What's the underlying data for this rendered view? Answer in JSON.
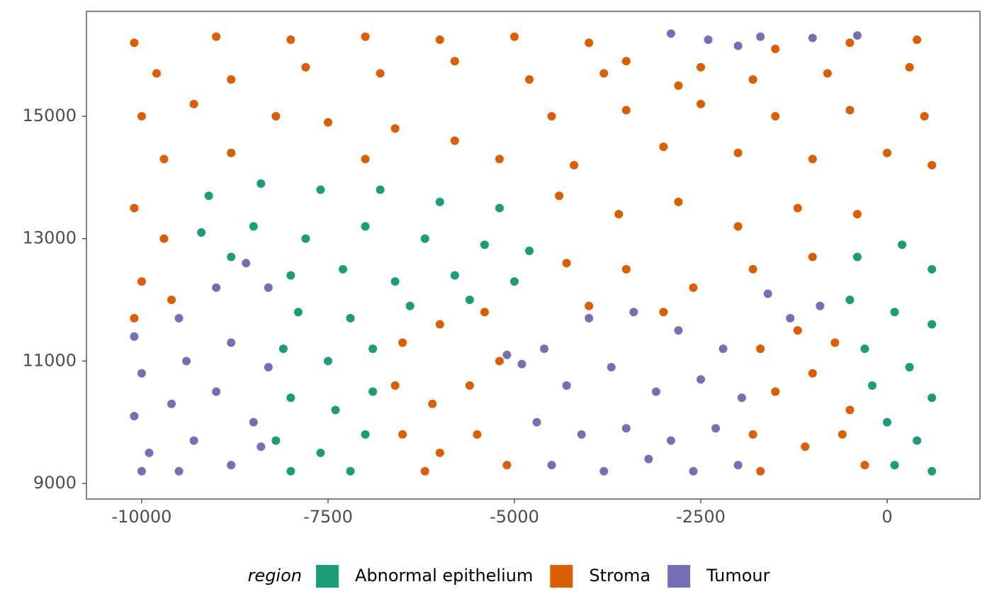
{
  "chart_data": {
    "type": "scatter",
    "xlim": [
      -10741,
      1245
    ],
    "ylim": [
      8745,
      16714
    ],
    "xticks": [
      -10000,
      -7500,
      -5000,
      -2500,
      0
    ],
    "yticks": [
      9000,
      11000,
      13000,
      15000
    ],
    "grid": false,
    "legend_title": "region",
    "legend_position": "bottom",
    "series": [
      {
        "name": "Abnormal epithelium",
        "color": "#1b9e77",
        "x": [
          -9100,
          -8400,
          -7600,
          -6800,
          -6000,
          -5200,
          -9200,
          -8500,
          -7800,
          -7000,
          -6200,
          -5400,
          -4800,
          -8800,
          -8000,
          -7300,
          -6600,
          -5800,
          -5000,
          -7900,
          -7200,
          -6400,
          -5600,
          -8100,
          -7500,
          -6900,
          -8000,
          -7400,
          -6900,
          -8200,
          -7600,
          -7000,
          -8000,
          -7200,
          -400,
          200,
          600,
          -500,
          100,
          600,
          -300,
          300,
          600,
          0,
          400,
          100,
          600,
          -200
        ],
        "values": [
          13700,
          13900,
          13800,
          13800,
          13600,
          13500,
          13100,
          13200,
          13000,
          13200,
          13000,
          12900,
          12800,
          12700,
          12400,
          12500,
          12300,
          12400,
          12300,
          11800,
          11700,
          11900,
          12000,
          11200,
          11000,
          11200,
          10400,
          10200,
          10500,
          9700,
          9500,
          9800,
          9200,
          9200,
          12700,
          12900,
          12500,
          12000,
          11800,
          11600,
          11200,
          10900,
          10400,
          10000,
          9700,
          9300,
          9200,
          10600
        ]
      },
      {
        "name": "Stroma",
        "color": "#d95f02",
        "x": [
          -10100,
          -9000,
          -8000,
          -7000,
          -6000,
          -5000,
          -4000,
          -3500,
          -2500,
          -1500,
          -500,
          400,
          -9800,
          -8800,
          -7800,
          -6800,
          -5800,
          -4800,
          -3800,
          -2800,
          -1800,
          -800,
          300,
          -10000,
          -9300,
          -8200,
          -7500,
          -6600,
          -5800,
          -4500,
          -3500,
          -2500,
          -1500,
          -500,
          500,
          -9700,
          -8800,
          -7000,
          -5200,
          -4200,
          -3000,
          -2000,
          -1000,
          0,
          600,
          -10100,
          -9700,
          -10000,
          -9600,
          -10100,
          -4400,
          -3600,
          -2800,
          -2000,
          -1200,
          -400,
          -4300,
          -3500,
          -2600,
          -1800,
          -1000,
          -4000,
          -3000,
          -6500,
          -6000,
          -5400,
          -6600,
          -6100,
          -5600,
          -5200,
          -6500,
          -6000,
          -5500,
          -5100,
          -6200,
          -1700,
          -1200,
          -700,
          -1500,
          -1000,
          -500,
          -1800,
          -1100,
          -600,
          -300,
          -1700
        ],
        "values": [
          16200,
          16300,
          16250,
          16300,
          16250,
          16300,
          16200,
          15900,
          15800,
          16100,
          16200,
          16250,
          15700,
          15600,
          15800,
          15700,
          15900,
          15600,
          15700,
          15500,
          15600,
          15700,
          15800,
          15000,
          15200,
          15000,
          14900,
          14800,
          14600,
          15000,
          15100,
          15200,
          15000,
          15100,
          15000,
          14300,
          14400,
          14300,
          14300,
          14200,
          14500,
          14400,
          14300,
          14400,
          14200,
          13500,
          13000,
          12300,
          12000,
          11700,
          13700,
          13400,
          13600,
          13200,
          13500,
          13400,
          12600,
          12500,
          12200,
          12500,
          12700,
          11900,
          11800,
          11300,
          11600,
          11800,
          10600,
          10300,
          10600,
          11000,
          9800,
          9500,
          9800,
          9300,
          9200,
          11200,
          11500,
          11300,
          10500,
          10800,
          10200,
          9800,
          9600,
          9800,
          9300,
          9200
        ]
      },
      {
        "name": "Tumour",
        "color": "#7570b3",
        "x": [
          -10100,
          -9500,
          -9000,
          -8600,
          -8300,
          -10000,
          -9400,
          -8800,
          -8300,
          -10100,
          -9600,
          -9000,
          -8500,
          -9900,
          -9300,
          -8800,
          -10000,
          -9500,
          -8400,
          -2900,
          -2400,
          -1700,
          -1000,
          -400,
          -2000,
          -5100,
          -4900,
          -4600,
          -4000,
          -3400,
          -2800,
          -2200,
          -4300,
          -3700,
          -3100,
          -2500,
          -1950,
          -4700,
          -4100,
          -3500,
          -2900,
          -2300,
          -4500,
          -3800,
          -3200,
          -2600,
          -2000,
          -1600,
          -1300,
          -900
        ],
        "values": [
          11400,
          11700,
          12200,
          12600,
          12200,
          10800,
          11000,
          11300,
          10900,
          10100,
          10300,
          10500,
          10000,
          9500,
          9700,
          9300,
          9200,
          9200,
          9600,
          16350,
          16250,
          16300,
          16280,
          16320,
          16150,
          11100,
          10950,
          11200,
          11700,
          11800,
          11500,
          11200,
          10600,
          10900,
          10500,
          10700,
          10400,
          10000,
          9800,
          9900,
          9700,
          9900,
          9300,
          9200,
          9400,
          9200,
          9300,
          12100,
          11700,
          11900
        ]
      }
    ]
  }
}
